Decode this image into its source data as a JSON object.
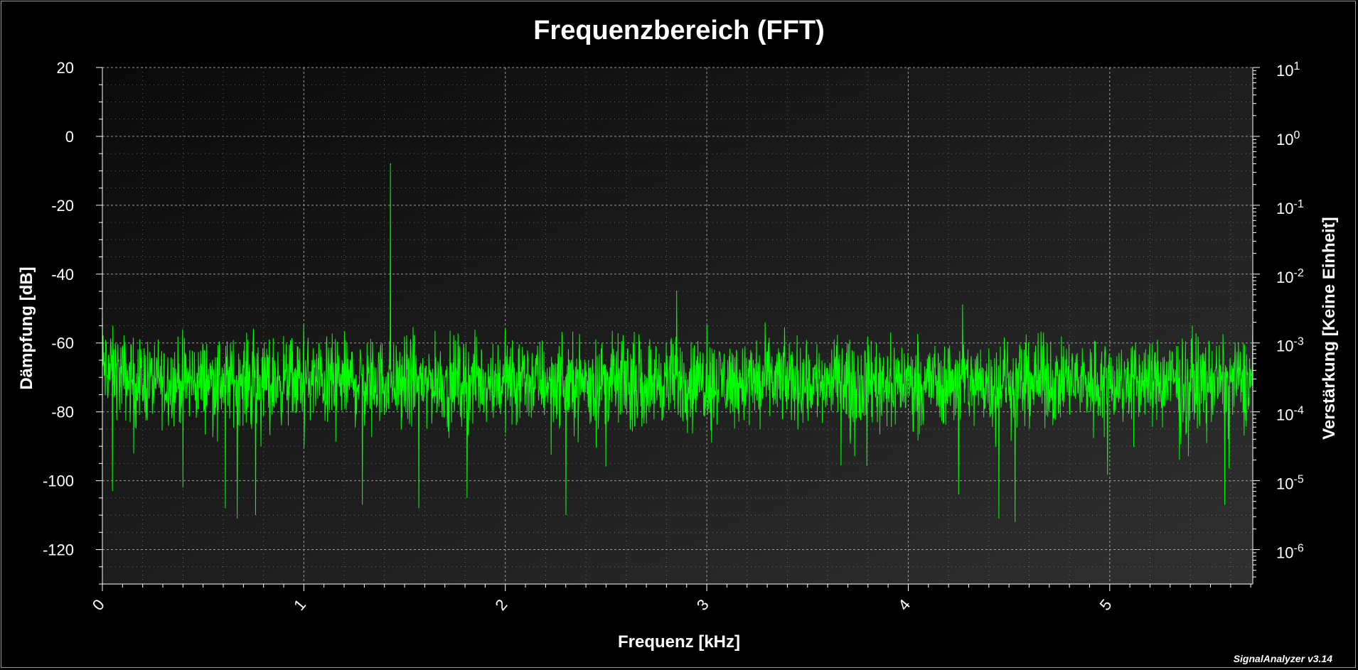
{
  "chart_data": {
    "type": "line",
    "title": "Frequenzbereich (FFT)",
    "xlabel": "Frequenz [kHz]",
    "ylabel": "Dämpfung [dB]",
    "y2label": "Verstärkung [Keine Einheit]",
    "xlim": [
      0,
      5.71
    ],
    "ylim": [
      -130,
      20
    ],
    "y2lim": [
      3.16e-07,
      10
    ],
    "y2scale": "log",
    "x_ticks": [
      "0",
      "1",
      "2",
      "3",
      "4",
      "5"
    ],
    "y_ticks": [
      "20",
      "0",
      "-20",
      "-40",
      "-60",
      "-80",
      "-100",
      "-120"
    ],
    "y2_ticks": [
      {
        "base": "10",
        "exp": "1"
      },
      {
        "base": "10",
        "exp": "0"
      },
      {
        "base": "10",
        "exp": "-1"
      },
      {
        "base": "10",
        "exp": "-2"
      },
      {
        "base": "10",
        "exp": "-3"
      },
      {
        "base": "10",
        "exp": "-4"
      },
      {
        "base": "10",
        "exp": "-5"
      },
      {
        "base": "10",
        "exp": "-6"
      }
    ],
    "grid": true,
    "series_color": "#00ff00",
    "noise_floor": {
      "mean_db": -71,
      "spread_db": 6
    },
    "peaks": [
      {
        "x": 0.0,
        "y": -53
      },
      {
        "x": 1.0,
        "y": -55
      },
      {
        "x": 1.43,
        "y": -8
      },
      {
        "x": 2.0,
        "y": -56
      },
      {
        "x": 2.85,
        "y": -45
      },
      {
        "x": 3.0,
        "y": -55
      },
      {
        "x": 4.27,
        "y": -49
      },
      {
        "x": 5.71,
        "y": -53
      }
    ],
    "dips": [
      {
        "x": 0.05,
        "y": -103
      },
      {
        "x": 0.4,
        "y": -102
      },
      {
        "x": 0.61,
        "y": -108
      },
      {
        "x": 0.67,
        "y": -111
      },
      {
        "x": 0.76,
        "y": -110
      },
      {
        "x": 1.29,
        "y": -107
      },
      {
        "x": 1.57,
        "y": -108
      },
      {
        "x": 1.81,
        "y": -105
      },
      {
        "x": 2.3,
        "y": -110
      },
      {
        "x": 4.25,
        "y": -104
      },
      {
        "x": 4.45,
        "y": -111
      },
      {
        "x": 4.53,
        "y": -112
      },
      {
        "x": 5.57,
        "y": -107
      }
    ]
  },
  "watermark": "SignalAnalyzer v3.14",
  "colors": {
    "background": "#000000",
    "plot_bg_dark": "#0a0a0a",
    "plot_bg_light": "#303030",
    "grid": "#b4b4b4",
    "text": "#ffffff"
  }
}
